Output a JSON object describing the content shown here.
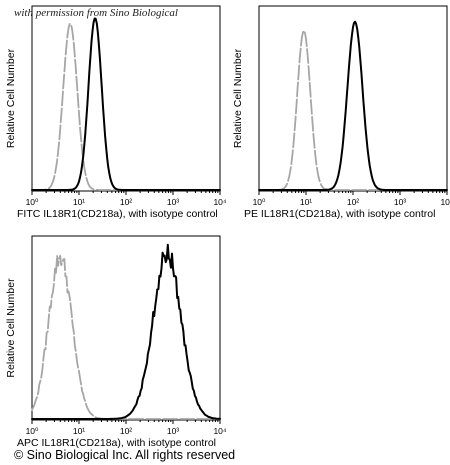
{
  "watermark": "with permission from Sino Biological",
  "copyright": "© Sino Biological Inc. All rights reserved",
  "colors": {
    "isotype": "#a6a6a6",
    "sample": "#000000",
    "frame": "#000000"
  },
  "chart_data": [
    {
      "type": "line",
      "xscale": "log",
      "xlim": [
        1,
        10000
      ],
      "xticks": [
        "10⁰",
        "10¹",
        "10²",
        "10³",
        "10⁴"
      ],
      "xlabel": "FITC IL18R1(CD218a), with isotype control",
      "ylabel": "Relative Cell Number",
      "series": [
        {
          "role": "isotype",
          "peak": 6.5,
          "sigma": 0.15,
          "height": 0.92,
          "dashed": true
        },
        {
          "role": "sample",
          "peak": 22,
          "sigma": 0.14,
          "height": 0.95,
          "dashed": false
        }
      ]
    },
    {
      "type": "line",
      "xscale": "log",
      "xlim": [
        1,
        10000
      ],
      "xticks": [
        "10⁰",
        "10¹",
        "10²",
        "10³",
        "10⁴"
      ],
      "xlabel": "PE IL18R1(CD218a), with isotype control",
      "ylabel": "Relative Cell Number",
      "series": [
        {
          "role": "isotype",
          "peak": 9,
          "sigma": 0.14,
          "height": 0.88,
          "dashed": true
        },
        {
          "role": "sample",
          "peak": 110,
          "sigma": 0.16,
          "height": 0.93,
          "dashed": false
        }
      ]
    },
    {
      "type": "line",
      "xscale": "log",
      "xlim": [
        1,
        10000
      ],
      "xticks": [
        "10⁰",
        "10¹",
        "10²",
        "10³",
        "10⁴"
      ],
      "xlabel": "APC IL18R1(CD218a), with isotype control",
      "ylabel": "Relative Cell Number",
      "series": [
        {
          "role": "isotype",
          "peak": 4,
          "sigma": 0.25,
          "height": 0.9,
          "dashed": true
        },
        {
          "role": "sample",
          "peak": 750,
          "sigma": 0.3,
          "height": 0.92,
          "dashed": false
        }
      ]
    }
  ]
}
